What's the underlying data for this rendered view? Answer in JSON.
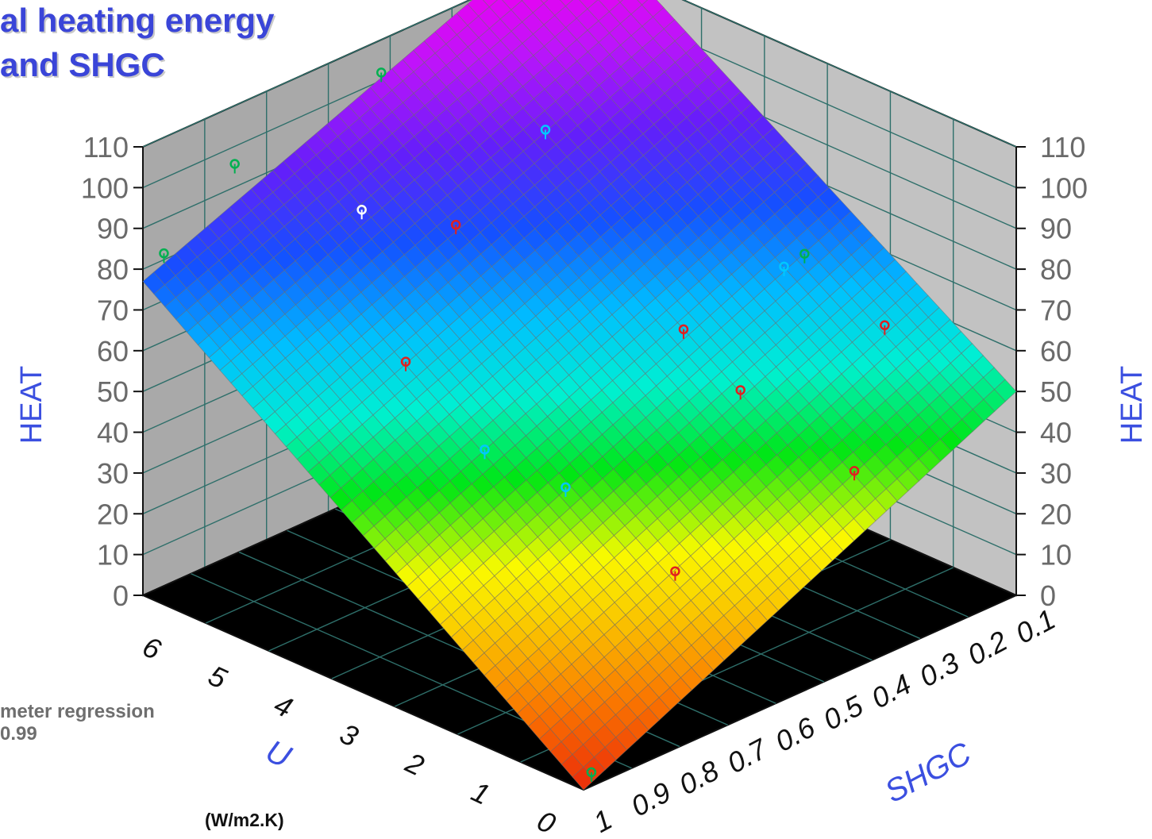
{
  "title_lines": [
    "al heating energy",
    "and SHGC"
  ],
  "notes": [
    "meter regression",
    "0.99"
  ],
  "unit_label": "(W/m2.K)",
  "chart_data": {
    "type": "surface3d",
    "zlabel_left": "HEAT",
    "zlabel_right": "HEAT",
    "xlabel": "U",
    "ylabel": "SHGC",
    "zticks": [
      0,
      10,
      20,
      30,
      40,
      50,
      60,
      70,
      80,
      90,
      100,
      110
    ],
    "zlim": [
      0,
      110
    ],
    "xticks": [
      0,
      1,
      2,
      3,
      4,
      5,
      6
    ],
    "xlim": [
      0,
      6.7
    ],
    "yticks": [
      1,
      0.9,
      0.8,
      0.7,
      0.6,
      0.5,
      0.4,
      0.3,
      0.2,
      0.1
    ],
    "ylim": [
      0.1,
      1.0
    ],
    "surface_corners": {
      "U0_SHGC1": 0,
      "U0_SHGC0.1": 50,
      "U6.7_SHGC1": 77,
      "U6.7_SHGC0.1": 120
    },
    "points": [
      {
        "u": 0.1,
        "shgc": 0.97,
        "heat": 2,
        "color": "#00b050"
      },
      {
        "u": 6.0,
        "shgc": 0.6,
        "heat": 112,
        "color": "#00b050"
      },
      {
        "u": 6.4,
        "shgc": 0.85,
        "heat": 100,
        "color": "#00b050"
      },
      {
        "u": 6.6,
        "shgc": 0.97,
        "heat": 83,
        "color": "#00b050"
      },
      {
        "u": 4.6,
        "shgc": 0.45,
        "heat": 100,
        "color": "#00c8ff"
      },
      {
        "u": 5.2,
        "shgc": 0.75,
        "heat": 92,
        "color": "#ffffff"
      },
      {
        "u": 4.5,
        "shgc": 0.65,
        "heat": 88,
        "color": "#e02020"
      },
      {
        "u": 3.8,
        "shgc": 0.85,
        "heat": 70,
        "color": "#e02020"
      },
      {
        "u": 2.6,
        "shgc": 0.85,
        "heat": 57,
        "color": "#00c8ff"
      },
      {
        "u": 2.1,
        "shgc": 0.75,
        "heat": 46,
        "color": "#00c8ff"
      },
      {
        "u": 0.8,
        "shgc": 0.7,
        "heat": 32,
        "color": "#e02020"
      },
      {
        "u": 2.5,
        "shgc": 0.45,
        "heat": 66,
        "color": "#e02020"
      },
      {
        "u": 2.0,
        "shgc": 0.4,
        "heat": 52,
        "color": "#e02020"
      },
      {
        "u": 1.0,
        "shgc": 0.3,
        "heat": 34,
        "color": "#e02020"
      },
      {
        "u": 2.0,
        "shgc": 0.1,
        "heat": 52,
        "color": "#e02020"
      },
      {
        "u": 2.8,
        "shgc": 0.2,
        "heat": 66,
        "color": "#00c8ff"
      },
      {
        "u": 3.0,
        "shgc": 0.13,
        "heat": 64,
        "color": "#00b050"
      }
    ]
  }
}
